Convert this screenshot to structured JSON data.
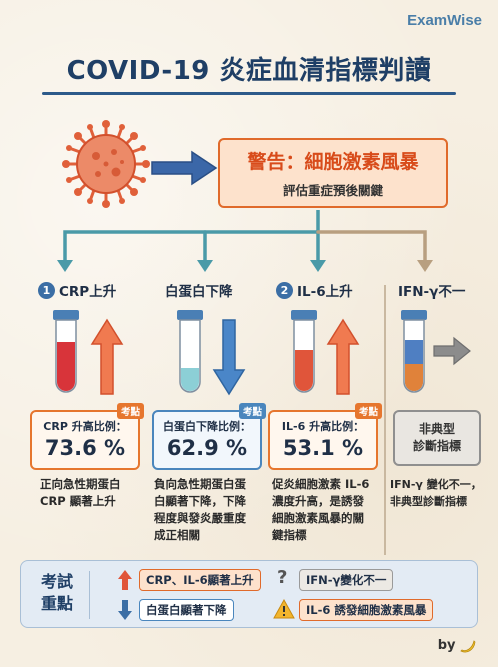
{
  "brand": "ExamWise",
  "title": "COVID-19 炎症血清指標判讀",
  "warning": {
    "title": "警告：細胞激素風暴",
    "subtitle": "評估重症預後關鍵"
  },
  "columns": [
    {
      "number": "1",
      "heading": "CRP上升",
      "stat_label": "CRP 升高比例：",
      "stat_value": "73.6 %",
      "tag": "考點",
      "desc": [
        "正向急性期蛋白",
        "CRP 顯著上升"
      ]
    },
    {
      "number": "",
      "heading": "白蛋白下降",
      "stat_label": "白蛋白下降比例：",
      "stat_value": "62.9 %",
      "tag": "考點",
      "desc": [
        "負向急性期蛋白蛋",
        "白顯著下降，下降",
        "程度與發炎嚴重度",
        "成正相關"
      ]
    },
    {
      "number": "2",
      "heading": "IL-6上升",
      "stat_label": "IL-6 升高比例：",
      "stat_value": "53.1 %",
      "tag": "考點",
      "desc": [
        "促炎細胞激素 IL-6",
        "濃度升高，是誘發",
        "細胞激素風暴的關",
        "鍵指標"
      ]
    },
    {
      "number": "",
      "heading": "IFN-γ不一",
      "box_lines": [
        "非典型",
        "診斷指標"
      ],
      "desc": [
        "IFN-γ 變化不一，",
        "非典型診斷指標"
      ]
    }
  ],
  "summary": {
    "label_line1": "考試",
    "label_line2": "重點",
    "items": [
      "CRP、IL-6顯著上升",
      "白蛋白顯著下降",
      "IFN-γ變化不一",
      "IL-6 誘發細胞激素風暴"
    ]
  },
  "byline": "by",
  "colors": {
    "orange": "#e06a2b",
    "blue": "#4a86bd",
    "navy": "#1f3f66",
    "gray": "#8f8f8f"
  }
}
